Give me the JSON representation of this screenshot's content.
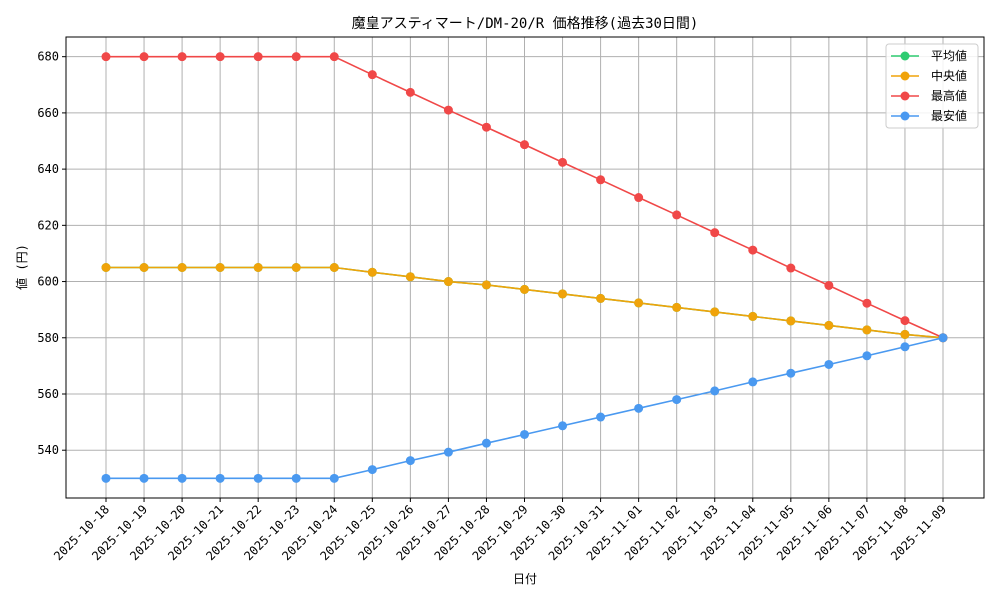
{
  "chart_data": {
    "type": "line",
    "title": "魔皇アスティマート/DM-20/R 価格推移(過去30日間)",
    "xlabel": "日付",
    "ylabel": "値 (円)",
    "ylim": [
      523,
      687
    ],
    "yticks": [
      540,
      560,
      580,
      600,
      620,
      640,
      660,
      680
    ],
    "grid": true,
    "legend_position": "top-right",
    "categories": [
      "2025-10-18",
      "2025-10-19",
      "2025-10-20",
      "2025-10-21",
      "2025-10-22",
      "2025-10-23",
      "2025-10-24",
      "2025-10-25",
      "2025-10-26",
      "2025-10-27",
      "2025-10-28",
      "2025-10-29",
      "2025-10-30",
      "2025-10-31",
      "2025-11-01",
      "2025-11-02",
      "2025-11-03",
      "2025-11-04",
      "2025-11-05",
      "2025-11-06",
      "2025-11-07",
      "2025-11-08",
      "2025-11-09"
    ],
    "series": [
      {
        "name": "平均値",
        "color": "#2ecc71",
        "values": [
          605,
          605,
          605,
          605,
          605,
          605,
          605,
          603.3,
          601.7,
          600.0,
          598.8,
          597.2,
          595.6,
          594.0,
          592.4,
          590.8,
          589.2,
          587.6,
          586.0,
          584.4,
          582.8,
          581.2,
          580
        ]
      },
      {
        "name": "中央値",
        "color": "#f0a30a",
        "values": [
          605,
          605,
          605,
          605,
          605,
          605,
          605,
          603.3,
          601.7,
          600.0,
          598.8,
          597.2,
          595.6,
          594.0,
          592.4,
          590.8,
          589.2,
          587.6,
          586.0,
          584.4,
          582.8,
          581.2,
          580
        ]
      },
      {
        "name": "最高値",
        "color": "#f04848",
        "values": [
          680,
          680,
          680,
          680,
          680,
          680,
          680,
          673.6,
          667.3,
          661.0,
          654.9,
          648.7,
          642.4,
          636.2,
          629.9,
          623.7,
          617.4,
          611.2,
          604.8,
          598.6,
          592.3,
          586.1,
          580
        ]
      },
      {
        "name": "最安値",
        "color": "#4a99f0",
        "values": [
          530,
          530,
          530,
          530,
          530,
          530,
          530,
          533.1,
          536.3,
          539.3,
          542.5,
          545.6,
          548.7,
          551.8,
          554.9,
          558.0,
          561.1,
          564.3,
          567.4,
          570.5,
          573.6,
          576.8,
          580
        ]
      }
    ]
  }
}
